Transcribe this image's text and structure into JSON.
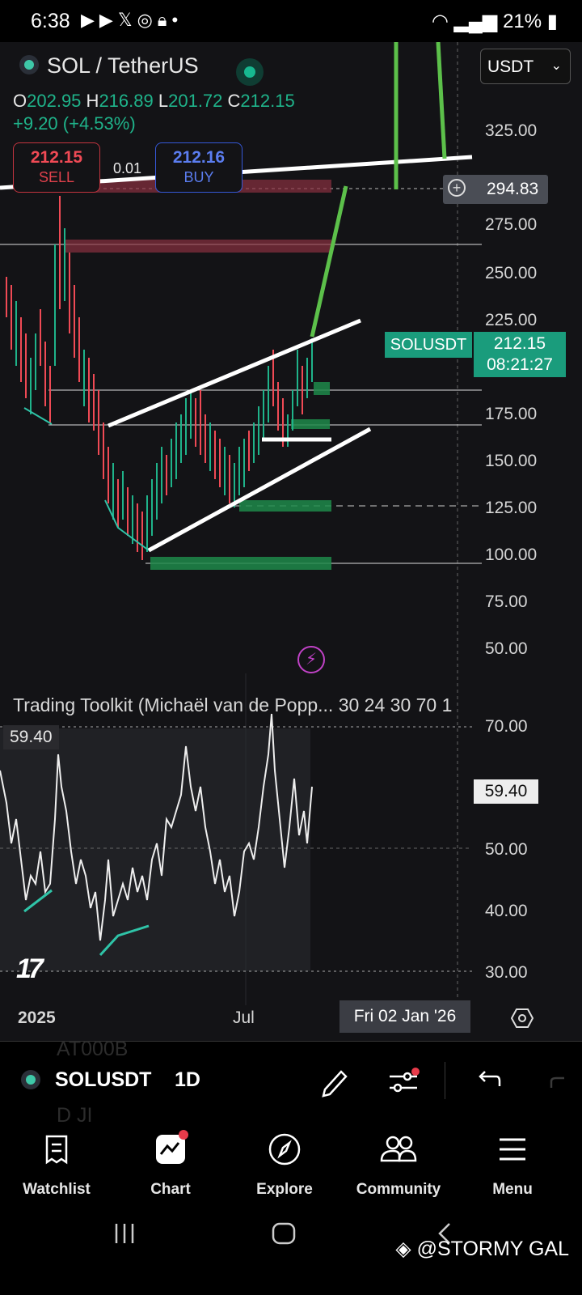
{
  "status_bar": {
    "time": "6:38",
    "battery": "21%",
    "icons": [
      "youtube-icon",
      "youtube-icon",
      "x-icon",
      "messenger-icon",
      "lock-icon",
      "dot-icon"
    ]
  },
  "header": {
    "symbol_title": "SOL / TetherUS",
    "quote_currency": "USDT"
  },
  "ohlc": {
    "o_label": "O",
    "o": "202.95",
    "h_label": "H",
    "h": "216.89",
    "l_label": "L",
    "l": "201.72",
    "c_label": "C",
    "c": "212.15",
    "change": "+9.20 (+4.53%)"
  },
  "trade": {
    "sell_price": "212.15",
    "sell_label": "SELL",
    "spread": "0.01",
    "buy_price": "212.16",
    "buy_label": "BUY"
  },
  "price_axis": {
    "ticks": [
      "325.00",
      "275.00",
      "250.00",
      "225.00",
      "175.00",
      "150.00",
      "125.00",
      "100.00",
      "75.00",
      "50.00"
    ],
    "crosshair_price": "294.83",
    "symbol_tag": "SOLUSDT",
    "last_price": "212.15",
    "countdown": "08:21:27"
  },
  "indicator": {
    "title": "Trading Toolkit (Michaël van de Popp... 30 24 30 70 1",
    "value_left": "59.40",
    "value_right": "59.40",
    "ticks": [
      "70.00",
      "50.00",
      "40.00",
      "30.00"
    ]
  },
  "time_axis": {
    "labels": [
      "2025",
      "Jul"
    ],
    "crosshair_date": "Fri 02 Jan '26"
  },
  "toolbar": {
    "symbol": "SOLUSDT",
    "interval": "1D",
    "ghost_text_1": "AT000B",
    "ghost_text_2": "D JI"
  },
  "bottom_nav": [
    {
      "label": "Watchlist",
      "icon": "watchlist-icon"
    },
    {
      "label": "Chart",
      "icon": "chart-icon"
    },
    {
      "label": "Explore",
      "icon": "compass-icon"
    },
    {
      "label": "Community",
      "icon": "community-icon"
    },
    {
      "label": "Menu",
      "icon": "menu-icon"
    }
  ],
  "watermark": "@STORMY GAL",
  "colors": {
    "bull": "#1fb38a",
    "bear": "#f04a55",
    "buy_blue": "#5b7df0",
    "trend_green": "#5cc04a",
    "accent_teal": "#1a9c7c"
  },
  "chart_data": {
    "type": "candlestick",
    "symbol": "SOLUSDT",
    "interval": "1D",
    "y_axis_ticks": [
      325,
      275,
      250,
      225,
      175,
      150,
      125,
      100,
      75,
      50
    ],
    "annotated_levels": [
      294.83,
      212.15
    ],
    "approx_closes": [
      220,
      205,
      180,
      190,
      260,
      240,
      200,
      175,
      130,
      115,
      125,
      110,
      105,
      140,
      150,
      160,
      175,
      185,
      170,
      155,
      150,
      140,
      150,
      165,
      185,
      200,
      190,
      175,
      195,
      205,
      212
    ],
    "oscillator": {
      "name": "Trading Toolkit",
      "ylim": [
        30,
        70
      ],
      "ticks": [
        70,
        50,
        40,
        30
      ],
      "last": 59.4
    }
  }
}
